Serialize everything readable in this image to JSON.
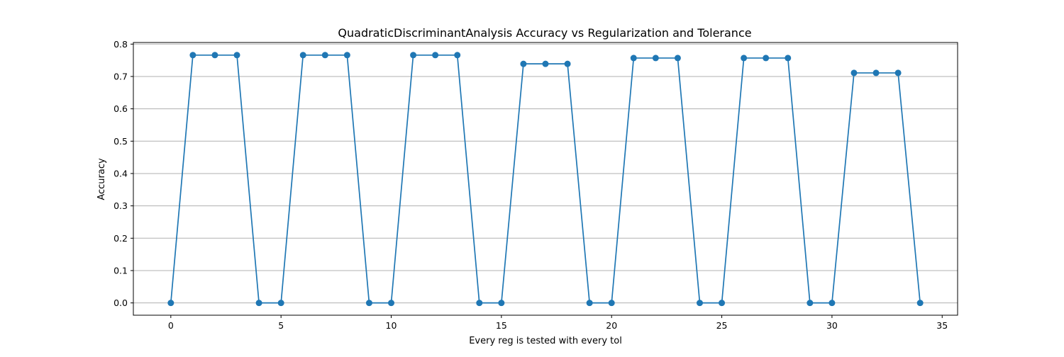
{
  "chart_data": {
    "type": "line",
    "title": "QuadraticDiscriminantAnalysis Accuracy vs Regularization and Tolerance",
    "xlabel": "Every reg is tested with every tol",
    "ylabel": "Accuracy",
    "xlim": [
      -1.7,
      35.7
    ],
    "ylim": [
      -0.038,
      0.805
    ],
    "xticks": [
      0,
      5,
      10,
      15,
      20,
      25,
      30,
      35
    ],
    "xtick_labels": [
      "0",
      "5",
      "10",
      "15",
      "20",
      "25",
      "30",
      "35"
    ],
    "yticks": [
      0.0,
      0.1,
      0.2,
      0.3,
      0.4,
      0.5,
      0.6,
      0.7,
      0.8
    ],
    "ytick_labels": [
      "0.0",
      "0.1",
      "0.2",
      "0.3",
      "0.4",
      "0.5",
      "0.6",
      "0.7",
      "0.8"
    ],
    "grid": "horizontal",
    "markers": "circle",
    "color": "#1f77b4",
    "series": [
      {
        "x": [
          0,
          1,
          2,
          3,
          4,
          5,
          6,
          7,
          8,
          9,
          10,
          11,
          12,
          13,
          14,
          15,
          16,
          17,
          18,
          19,
          20,
          21,
          22,
          23,
          24,
          25,
          26,
          27,
          28,
          29,
          30,
          31,
          32,
          33,
          34
        ],
        "values": [
          0.0,
          0.766,
          0.766,
          0.766,
          0.0,
          0.0,
          0.766,
          0.766,
          0.766,
          0.0,
          0.0,
          0.766,
          0.766,
          0.766,
          0.0,
          0.0,
          0.739,
          0.739,
          0.739,
          0.0,
          0.0,
          0.757,
          0.757,
          0.757,
          0.0,
          0.0,
          0.757,
          0.757,
          0.757,
          0.0,
          0.0,
          0.711,
          0.711,
          0.711,
          0.0
        ]
      }
    ]
  }
}
